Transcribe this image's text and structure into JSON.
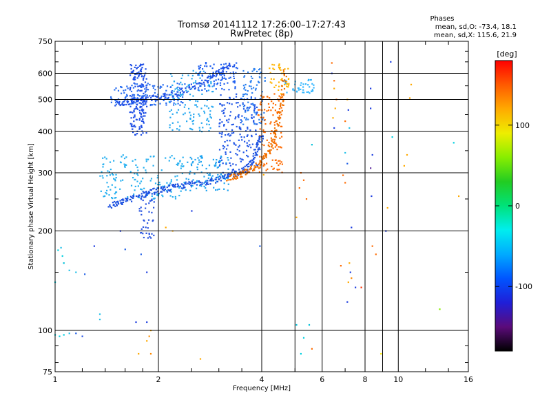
{
  "header": {
    "title": "Tromsø 20141112 17:26:00–17:27:43",
    "subtitle": "RwPretec (8p)",
    "stats_title": "Phases",
    "stats_o": "mean, sd,O: -73.4, 18.1",
    "stats_x": "mean, sd,X: 115.6, 21.9"
  },
  "chart_data": {
    "type": "scatter",
    "xlabel": "Frequency [MHz]",
    "ylabel": "Stationary phase Virtual Height [km]",
    "x_scale": "log",
    "y_scale": "log",
    "xlim": [
      1,
      16
    ],
    "ylim": [
      75,
      750
    ],
    "x_ticks": [
      1,
      2,
      4,
      6,
      8,
      10,
      16
    ],
    "x_tick_labels": [
      "1",
      "2",
      "4",
      "6",
      "8",
      "10",
      "16"
    ],
    "y_ticks": [
      75,
      100,
      200,
      300,
      400,
      500,
      600,
      750
    ],
    "y_tick_labels": [
      "75",
      "100",
      "200",
      "300",
      "400",
      "500",
      "600",
      "750"
    ],
    "grid": true,
    "colorbar": {
      "label": "[deg]",
      "range": [
        -180,
        180
      ],
      "ticks": [
        100,
        0,
        -100
      ],
      "tick_labels": [
        "100",
        "0",
        "-100"
      ],
      "colors": [
        "#000000",
        "#5b0b7a",
        "#1f1fd8",
        "#0055ff",
        "#00aaff",
        "#00eeee",
        "#00e27a",
        "#22cc22",
        "#88ee00",
        "#eeee00",
        "#ffaa00",
        "#ff5a00",
        "#ff0000"
      ]
    },
    "traces": [
      {
        "name": "O-mode lower F trace",
        "color": "#1a4fe0",
        "points": [
          [
            1.45,
            238
          ],
          [
            1.52,
            242
          ],
          [
            1.6,
            248
          ],
          [
            1.7,
            252
          ],
          [
            1.8,
            258
          ],
          [
            1.9,
            262
          ],
          [
            2.0,
            266
          ],
          [
            2.1,
            268
          ],
          [
            2.25,
            272
          ],
          [
            2.4,
            276
          ],
          [
            2.6,
            280
          ],
          [
            2.8,
            283
          ],
          [
            3.0,
            287
          ],
          [
            3.2,
            292
          ],
          [
            3.4,
            300
          ],
          [
            3.6,
            310
          ],
          [
            3.75,
            325
          ],
          [
            3.85,
            345
          ],
          [
            3.95,
            370
          ],
          [
            4.0,
            395
          ]
        ]
      },
      {
        "name": "X-mode lower F trace",
        "color": "#f07000",
        "points": [
          [
            3.2,
            288
          ],
          [
            3.35,
            292
          ],
          [
            3.5,
            297
          ],
          [
            3.7,
            305
          ],
          [
            3.9,
            315
          ],
          [
            4.05,
            330
          ],
          [
            4.2,
            350
          ],
          [
            4.35,
            380
          ],
          [
            4.45,
            420
          ],
          [
            4.55,
            470
          ],
          [
            4.62,
            540
          ],
          [
            4.68,
            620
          ]
        ]
      },
      {
        "name": "O-mode upper trace",
        "color": "#1f4fe6",
        "points": [
          [
            1.5,
            485
          ],
          [
            1.6,
            490
          ],
          [
            1.7,
            495
          ],
          [
            1.8,
            500
          ],
          [
            1.95,
            505
          ],
          [
            2.1,
            512
          ],
          [
            2.3,
            525
          ],
          [
            2.5,
            545
          ],
          [
            2.7,
            565
          ],
          [
            2.9,
            590
          ],
          [
            3.1,
            615
          ],
          [
            3.3,
            640
          ]
        ]
      }
    ],
    "clusters": [
      {
        "x": [
          1.65,
          1.85
        ],
        "y": [
          390,
          640
        ],
        "color": "#1f4fe6",
        "n": 180
      },
      {
        "x": [
          1.45,
          2.4
        ],
        "y": [
          480,
          560
        ],
        "color": "#2a6ef0",
        "n": 120
      },
      {
        "x": [
          2.15,
          2.9
        ],
        "y": [
          400,
          620
        ],
        "color": "#26a8f0",
        "n": 130
      },
      {
        "x": [
          2.6,
          3.4
        ],
        "y": [
          530,
          650
        ],
        "color": "#1f5ff0",
        "n": 90
      },
      {
        "x": [
          1.35,
          2.4
        ],
        "y": [
          250,
          340
        ],
        "color": "#27b0f0",
        "n": 160
      },
      {
        "x": [
          2.4,
          3.2
        ],
        "y": [
          265,
          345
        ],
        "color": "#20a4f0",
        "n": 100
      },
      {
        "x": [
          1.75,
          1.95
        ],
        "y": [
          190,
          250
        ],
        "color": "#2a55e0",
        "n": 40
      },
      {
        "x": [
          3.0,
          3.9
        ],
        "y": [
          300,
          520
        ],
        "color": "#1f55e6",
        "n": 180
      },
      {
        "x": [
          3.5,
          4.1
        ],
        "y": [
          420,
          620
        ],
        "color": "#2b80f0",
        "n": 80
      },
      {
        "x": [
          3.9,
          4.6
        ],
        "y": [
          300,
          520
        ],
        "color": "#ff6a00",
        "n": 110
      },
      {
        "x": [
          4.2,
          4.8
        ],
        "y": [
          520,
          640
        ],
        "color": "#ffb400",
        "n": 40
      },
      {
        "x": [
          4.6,
          5.7
        ],
        "y": [
          520,
          580
        ],
        "color": "#33b6ff",
        "n": 40
      }
    ],
    "scattered": [
      [
        1.02,
        175,
        "#00d0e0"
      ],
      [
        1.04,
        178,
        "#22c0e8"
      ],
      [
        1.05,
        168,
        "#00d0e0"
      ],
      [
        1.06,
        160,
        "#00c0d8"
      ],
      [
        1.1,
        152,
        "#22c0e8"
      ],
      [
        1.15,
        150,
        "#22c0e8"
      ],
      [
        1.22,
        148,
        "#1f5fe6"
      ],
      [
        1.0,
        140,
        "#00d0e0"
      ],
      [
        1.35,
        112,
        "#22c0e8"
      ],
      [
        1.35,
        108,
        "#22c0e8"
      ],
      [
        1.0,
        97,
        "#00d0e0"
      ],
      [
        1.03,
        96,
        "#00d0e0"
      ],
      [
        1.06,
        97,
        "#00d0e0"
      ],
      [
        1.1,
        98,
        "#22c0e8"
      ],
      [
        1.15,
        98,
        "#1f5fe6"
      ],
      [
        1.2,
        96,
        "#1f4fe6"
      ],
      [
        1.72,
        106,
        "#1f3fe0"
      ],
      [
        1.85,
        106,
        "#1f3fe0"
      ],
      [
        1.9,
        100,
        "#ffaa00"
      ],
      [
        1.88,
        96,
        "#ff9000"
      ],
      [
        1.85,
        93,
        "#ffaa00"
      ],
      [
        1.75,
        85,
        "#ffaa00"
      ],
      [
        1.9,
        85,
        "#ff8800"
      ],
      [
        1.85,
        150,
        "#1f3fe0"
      ],
      [
        1.6,
        176,
        "#1f5fe6"
      ],
      [
        1.78,
        170,
        "#1f5fe6"
      ],
      [
        2.65,
        82,
        "#ffaa00"
      ],
      [
        2.2,
        200,
        "#ffbb33"
      ],
      [
        4.05,
        296,
        "#ffaa00"
      ],
      [
        3.95,
        180,
        "#1f5fe6"
      ],
      [
        5.2,
        85,
        "#00d0e0"
      ],
      [
        5.3,
        95,
        "#00d0e0"
      ],
      [
        5.05,
        104,
        "#00c0d8"
      ],
      [
        5.5,
        104,
        "#00c0d8"
      ],
      [
        5.6,
        88,
        "#ff6a00"
      ],
      [
        5.6,
        365,
        "#00c0d8"
      ],
      [
        5.05,
        220,
        "#ffaa00"
      ],
      [
        5.15,
        270,
        "#ff6a00"
      ],
      [
        5.3,
        285,
        "#ff6a00"
      ],
      [
        5.2,
        300,
        "#ff6a00"
      ],
      [
        5.4,
        250,
        "#ff6a00"
      ],
      [
        6.4,
        645,
        "#ff6a00"
      ],
      [
        6.4,
        600,
        "#1f3fe0"
      ],
      [
        6.5,
        570,
        "#ff6a00"
      ],
      [
        6.5,
        540,
        "#ffaa00"
      ],
      [
        6.6,
        500,
        "#ff6a00"
      ],
      [
        6.55,
        470,
        "#ffaa00"
      ],
      [
        6.45,
        440,
        "#ffaa00"
      ],
      [
        6.5,
        410,
        "#1f3fe0"
      ],
      [
        7.1,
        500,
        "#ffaa00"
      ],
      [
        7.15,
        465,
        "#1f3fe0"
      ],
      [
        7.0,
        430,
        "#ff6a00"
      ],
      [
        7.2,
        410,
        "#22c0e8"
      ],
      [
        7.0,
        345,
        "#22c0e8"
      ],
      [
        7.1,
        320,
        "#1f5fe6"
      ],
      [
        6.9,
        295,
        "#ff6a00"
      ],
      [
        7.0,
        280,
        "#ff6a00"
      ],
      [
        7.3,
        205,
        "#1f3fe0"
      ],
      [
        7.2,
        160,
        "#ffaa00"
      ],
      [
        7.25,
        150,
        "#1f3fe0"
      ],
      [
        7.3,
        144,
        "#ff8800"
      ],
      [
        7.15,
        140,
        "#ffaa00"
      ],
      [
        6.8,
        157,
        "#ff6a00"
      ],
      [
        7.1,
        122,
        "#1f3fe0"
      ],
      [
        7.5,
        135,
        "#1f3fe0"
      ],
      [
        7.8,
        135,
        "#ff3000"
      ],
      [
        8.3,
        540,
        "#1f3fe0"
      ],
      [
        8.3,
        470,
        "#1f3fe0"
      ],
      [
        8.4,
        340,
        "#1f3fe0"
      ],
      [
        8.3,
        310,
        "#6030a0"
      ],
      [
        8.35,
        255,
        "#1f3fe0"
      ],
      [
        8.4,
        180,
        "#ff6a00"
      ],
      [
        8.6,
        170,
        "#ff6a00"
      ],
      [
        8.9,
        85,
        "#ffee00"
      ],
      [
        9.2,
        200,
        "#1f3fe0"
      ],
      [
        9.3,
        235,
        "#ffaa00"
      ],
      [
        9.5,
        650,
        "#1f3fe0"
      ],
      [
        9.6,
        385,
        "#00d0e0"
      ],
      [
        10.4,
        315,
        "#ffaa00"
      ],
      [
        10.6,
        340,
        "#ffaa00"
      ],
      [
        10.9,
        555,
        "#ffaa00"
      ],
      [
        10.8,
        505,
        "#ffaa00"
      ],
      [
        13.2,
        116,
        "#88ee00"
      ],
      [
        14.5,
        370,
        "#00d0e0"
      ],
      [
        15.0,
        255,
        "#ffaa00"
      ],
      [
        1.3,
        180,
        "#1f3fe0"
      ],
      [
        1.55,
        200,
        "#1f3fe0"
      ],
      [
        2.5,
        230,
        "#1f3fe0"
      ],
      [
        2.1,
        205,
        "#ffaa00"
      ]
    ]
  }
}
